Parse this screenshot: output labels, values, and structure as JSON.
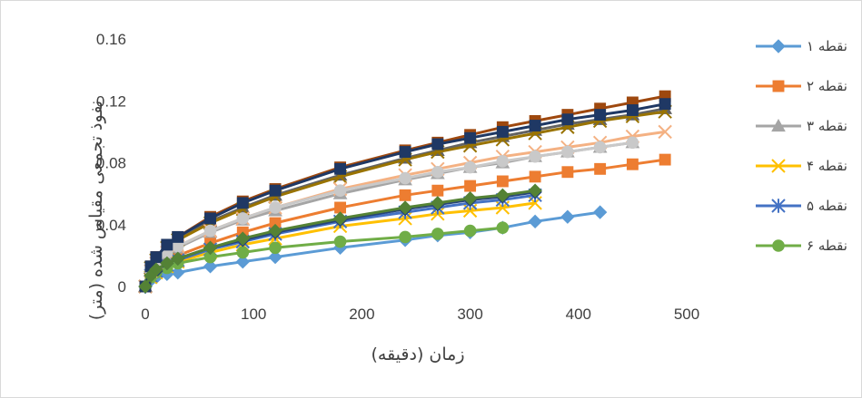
{
  "chart_data": {
    "type": "line",
    "title": "",
    "xlabel": "زمان (دقیقه)",
    "ylabel": "نفوذ تجمعی مقیاس شده (متر)",
    "xlim": [
      0,
      500
    ],
    "ylim": [
      0,
      0.16
    ],
    "x_ticks": [
      "0",
      "100",
      "200",
      "300",
      "400",
      "500"
    ],
    "y_ticks": [
      "0",
      "0.04",
      "0.08",
      "0.12",
      "0.16"
    ],
    "grid": false,
    "legend": "right",
    "series": [
      {
        "name": "نقطه ۱",
        "color": "#5B9BD5",
        "marker": "diamond",
        "x": [
          0,
          5,
          10,
          20,
          30,
          60,
          90,
          120,
          180,
          240,
          270,
          300,
          330,
          360,
          390,
          420
        ],
        "y": [
          0,
          0.004,
          0.006,
          0.008,
          0.009,
          0.013,
          0.016,
          0.019,
          0.025,
          0.03,
          0.033,
          0.035,
          0.038,
          0.042,
          0.045,
          0.048
        ]
      },
      {
        "name": "نقطه ۲",
        "color": "#ED7D31",
        "marker": "square",
        "x": [
          0,
          5,
          10,
          20,
          30,
          60,
          90,
          120,
          180,
          240,
          270,
          300,
          330,
          360,
          390,
          420,
          450,
          480
        ],
        "y": [
          0,
          0.008,
          0.012,
          0.017,
          0.02,
          0.028,
          0.035,
          0.041,
          0.051,
          0.059,
          0.062,
          0.065,
          0.068,
          0.071,
          0.074,
          0.076,
          0.079,
          0.082
        ]
      },
      {
        "name": "نقطه ۳",
        "color": "#A5A5A5",
        "marker": "triangle",
        "x": [
          0,
          5,
          10,
          20,
          30,
          60,
          90,
          120,
          180,
          240,
          270,
          300,
          330,
          360,
          390,
          420,
          450
        ],
        "y": [
          0,
          0.01,
          0.015,
          0.021,
          0.025,
          0.035,
          0.043,
          0.049,
          0.06,
          0.069,
          0.073,
          0.077,
          0.08,
          0.084,
          0.087,
          0.09,
          0.093
        ]
      },
      {
        "name": "نقطه ۴",
        "color": "#FFC000",
        "marker": "x",
        "x": [
          0,
          5,
          10,
          20,
          30,
          60,
          90,
          120,
          180,
          240,
          270,
          300,
          330,
          360
        ],
        "y": [
          0,
          0.006,
          0.009,
          0.013,
          0.016,
          0.022,
          0.027,
          0.031,
          0.039,
          0.044,
          0.047,
          0.049,
          0.051,
          0.054
        ]
      },
      {
        "name": "نقطه ۵",
        "color": "#4472C4",
        "marker": "star",
        "x": [
          0,
          5,
          10,
          20,
          30,
          60,
          90,
          120,
          180,
          240,
          270,
          300,
          330,
          360
        ],
        "y": [
          0,
          0.007,
          0.01,
          0.014,
          0.017,
          0.024,
          0.029,
          0.034,
          0.042,
          0.048,
          0.051,
          0.054,
          0.056,
          0.059
        ]
      },
      {
        "name": "نقطه ۶",
        "color": "#70AD47",
        "marker": "circle",
        "x": [
          0,
          5,
          10,
          20,
          30,
          60,
          90,
          120,
          180,
          240,
          270,
          300,
          330
        ],
        "y": [
          0,
          0.006,
          0.009,
          0.012,
          0.015,
          0.019,
          0.022,
          0.025,
          0.029,
          0.032,
          0.034,
          0.036,
          0.038
        ]
      },
      {
        "color": "#264478",
        "marker": "diamond",
        "x": [
          0,
          5,
          10,
          20,
          30,
          60,
          90,
          120,
          180,
          240,
          270,
          300,
          330,
          360
        ],
        "y": [
          0,
          0.007,
          0.01,
          0.015,
          0.018,
          0.025,
          0.03,
          0.035,
          0.043,
          0.05,
          0.053,
          0.056,
          0.058,
          0.061
        ]
      },
      {
        "color": "#9E480E",
        "marker": "square",
        "x": [
          0,
          5,
          10,
          20,
          30,
          60,
          90,
          120,
          180,
          240,
          270,
          300,
          330,
          360,
          390,
          420,
          450,
          480
        ],
        "y": [
          0,
          0.013,
          0.019,
          0.027,
          0.032,
          0.045,
          0.055,
          0.063,
          0.077,
          0.088,
          0.093,
          0.098,
          0.103,
          0.107,
          0.111,
          0.115,
          0.119,
          0.123
        ]
      },
      {
        "color": "#636363",
        "marker": "triangle",
        "x": [
          0,
          5,
          10,
          20,
          30,
          60,
          90,
          120,
          180,
          240,
          270,
          300,
          330,
          360,
          390,
          420,
          450,
          480
        ],
        "y": [
          0,
          0.012,
          0.018,
          0.025,
          0.03,
          0.042,
          0.051,
          0.059,
          0.072,
          0.083,
          0.088,
          0.093,
          0.097,
          0.101,
          0.105,
          0.108,
          0.111,
          0.115
        ]
      },
      {
        "color": "#997300",
        "marker": "x",
        "x": [
          0,
          5,
          10,
          20,
          30,
          60,
          90,
          120,
          180,
          240,
          270,
          300,
          330,
          360,
          390,
          420,
          450,
          480
        ],
        "y": [
          0,
          0.012,
          0.017,
          0.025,
          0.03,
          0.041,
          0.05,
          0.058,
          0.071,
          0.082,
          0.087,
          0.091,
          0.095,
          0.099,
          0.103,
          0.107,
          0.11,
          0.113
        ]
      },
      {
        "color": "#F4B183",
        "marker": "x",
        "x": [
          0,
          5,
          10,
          20,
          30,
          60,
          90,
          120,
          180,
          240,
          270,
          300,
          330,
          360,
          390,
          420,
          450,
          480
        ],
        "y": [
          0,
          0.01,
          0.015,
          0.022,
          0.026,
          0.036,
          0.044,
          0.051,
          0.063,
          0.072,
          0.076,
          0.08,
          0.084,
          0.087,
          0.09,
          0.093,
          0.097,
          0.1
        ]
      },
      {
        "color": "#C9C9C9",
        "marker": "circle",
        "x": [
          0,
          5,
          10,
          20,
          30,
          60,
          90,
          120,
          180,
          240,
          270,
          300,
          330,
          360,
          390,
          420,
          450
        ],
        "y": [
          0,
          0.01,
          0.015,
          0.022,
          0.026,
          0.036,
          0.044,
          0.051,
          0.062,
          0.07,
          0.074,
          0.077,
          0.081,
          0.084,
          0.087,
          0.09,
          0.093
        ]
      },
      {
        "color": "#1F3864",
        "marker": "square",
        "x": [
          0,
          5,
          10,
          20,
          30,
          60,
          90,
          120,
          180,
          240,
          270,
          300,
          330,
          360,
          390,
          420,
          450,
          480
        ],
        "y": [
          0,
          0.013,
          0.019,
          0.027,
          0.032,
          0.044,
          0.054,
          0.062,
          0.076,
          0.087,
          0.092,
          0.096,
          0.1,
          0.104,
          0.108,
          0.111,
          0.114,
          0.118
        ]
      },
      {
        "color": "#548235",
        "marker": "diamond",
        "x": [
          0,
          5,
          10,
          20,
          30,
          60,
          90,
          120,
          180,
          240,
          270,
          300,
          330,
          360
        ],
        "y": [
          0,
          0.007,
          0.011,
          0.015,
          0.018,
          0.025,
          0.031,
          0.036,
          0.044,
          0.051,
          0.054,
          0.057,
          0.059,
          0.062
        ]
      }
    ]
  }
}
